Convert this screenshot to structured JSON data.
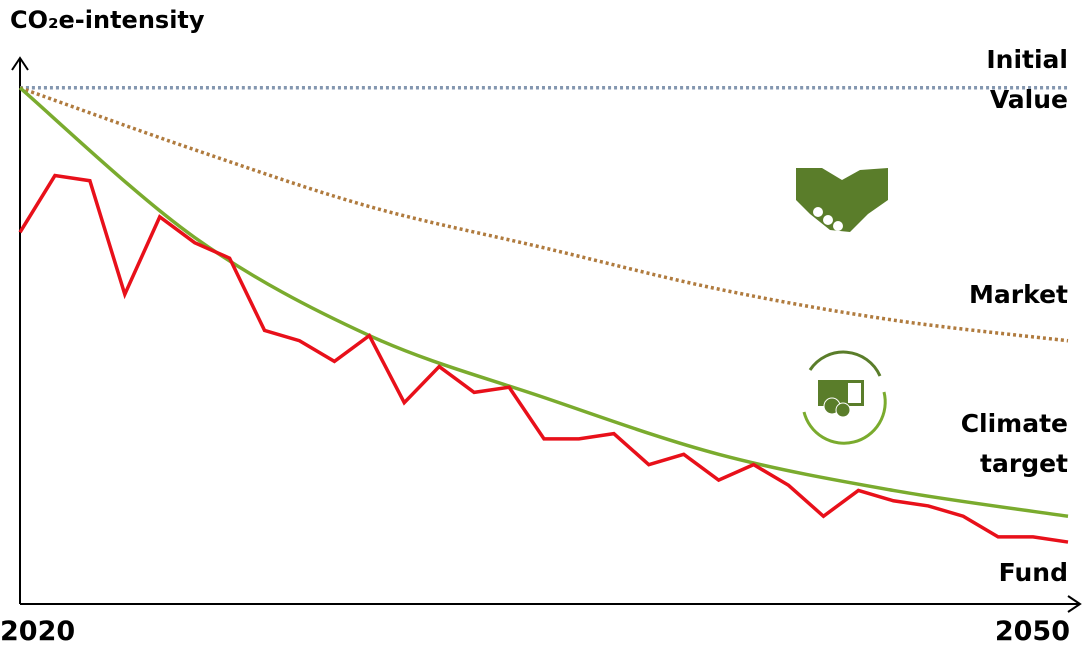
{
  "chart_data": {
    "type": "line",
    "title": "CO₂e-intensity",
    "xlim": [
      2020,
      2050
    ],
    "xticks": [
      2020,
      2050
    ],
    "ylim": [
      0,
      105
    ],
    "series": [
      {
        "name": "Initial Value",
        "color": "#8497b0",
        "style": "dotted",
        "x": [
          2020,
          2050
        ],
        "values": [
          100,
          100
        ]
      },
      {
        "name": "Market",
        "color": "#b07b3e",
        "style": "dotted",
        "x": [
          2020,
          2025,
          2030,
          2035,
          2040,
          2045,
          2050
        ],
        "values": [
          100,
          88,
          77,
          69,
          61,
          55,
          51
        ]
      },
      {
        "name": "Climate target",
        "color": "#7aab2e",
        "style": "solid",
        "x": [
          2020,
          2025,
          2030,
          2035,
          2040,
          2045,
          2050
        ],
        "values": [
          100,
          71,
          52,
          40,
          29,
          22,
          17
        ]
      },
      {
        "name": "Fund",
        "color": "#e8101a",
        "style": "solid",
        "x": [
          2020,
          2021,
          2022,
          2023,
          2024,
          2025,
          2026,
          2027,
          2028,
          2029,
          2030,
          2031,
          2032,
          2033,
          2034,
          2035,
          2036,
          2037,
          2038,
          2039,
          2040,
          2041,
          2042,
          2043,
          2044,
          2045,
          2046,
          2047,
          2048,
          2049,
          2050
        ],
        "values": [
          72,
          83,
          82,
          60,
          75,
          70,
          67,
          53,
          51,
          47,
          52,
          39,
          46,
          41,
          42,
          32,
          32,
          33,
          27,
          29,
          24,
          27,
          23,
          17,
          22,
          20,
          19,
          17,
          13,
          13,
          12
        ]
      }
    ]
  }
}
